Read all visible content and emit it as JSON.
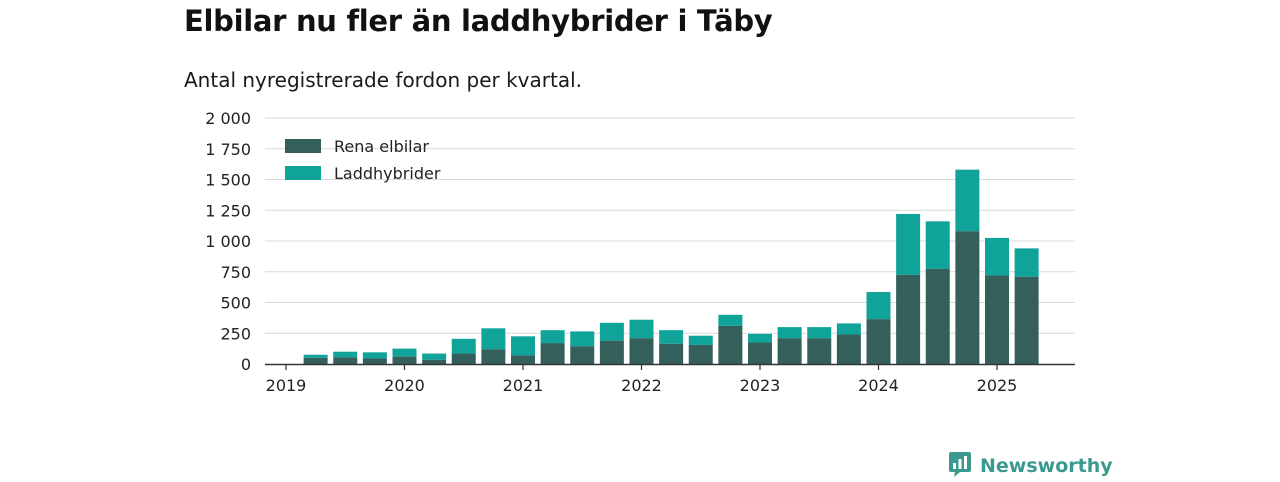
{
  "title": "Elbilar nu fler än laddhybrider i Täby",
  "subtitle": "Antal nyregistrerade fordon per kvartal.",
  "brand": {
    "name": "Newsworthy",
    "icon": "newsworthy-logo-icon",
    "color": "#3a9a8f"
  },
  "colors": {
    "rena_elbilar": "#355f5b",
    "laddhybrider": "#0fa39a",
    "grid": "#d9d9d9",
    "axis": "#333333"
  },
  "chart_data": {
    "type": "bar",
    "stacked": true,
    "title": "Elbilar nu fler än laddhybrider i Täby",
    "subtitle": "Antal nyregistrerade fordon per kvartal.",
    "xlabel": "",
    "ylabel": "",
    "ylim": [
      0,
      2000
    ],
    "yticks": [
      0,
      250,
      500,
      750,
      1000,
      1250,
      1500,
      1750,
      2000
    ],
    "ytick_labels": [
      "0",
      "250",
      "500",
      "750",
      "1 000",
      "1 250",
      "1 500",
      "1 750",
      "2 000"
    ],
    "xticks": [
      "2019",
      "2020",
      "2021",
      "2022",
      "2023",
      "2024",
      "2025"
    ],
    "grid": true,
    "legend_position": "top-left",
    "categories": [
      "2019 Q2",
      "2019 Q3",
      "2019 Q4",
      "2020 Q1",
      "2020 Q2",
      "2020 Q3",
      "2020 Q4",
      "2021 Q1",
      "2021 Q2",
      "2021 Q3",
      "2021 Q4",
      "2022 Q1",
      "2022 Q2",
      "2022 Q3",
      "2022 Q4",
      "2023 Q1",
      "2023 Q2",
      "2023 Q3",
      "2023 Q4",
      "2024 Q1",
      "2024 Q2",
      "2024 Q3",
      "2024 Q4",
      "2025 Q1",
      "2025 Q2"
    ],
    "series": [
      {
        "name": "Rena elbilar",
        "values": [
          50,
          55,
          45,
          60,
          35,
          85,
          120,
          70,
          170,
          145,
          190,
          210,
          165,
          155,
          310,
          175,
          210,
          210,
          240,
          365,
          725,
          775,
          1080,
          720,
          710
        ]
      },
      {
        "name": "Laddhybrider",
        "values": [
          25,
          45,
          50,
          65,
          50,
          120,
          170,
          155,
          105,
          120,
          145,
          150,
          110,
          75,
          90,
          70,
          90,
          90,
          90,
          220,
          495,
          385,
          500,
          305,
          230
        ]
      }
    ]
  }
}
